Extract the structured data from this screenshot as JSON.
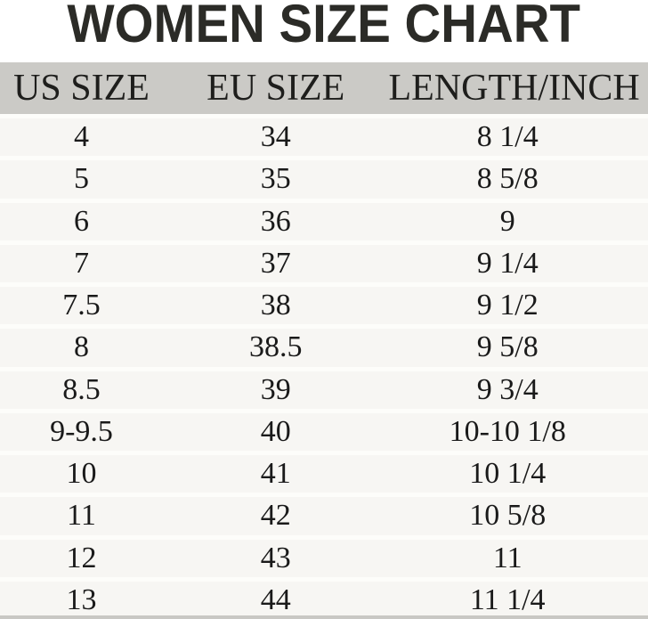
{
  "title": "WOMEN SIZE CHART",
  "chart_data": {
    "type": "table",
    "title": "WOMEN SIZE CHART",
    "columns": [
      "US SIZE",
      "EU SIZE",
      "LENGTH/INCH"
    ],
    "rows": [
      [
        "4",
        "34",
        "8 1/4"
      ],
      [
        "5",
        "35",
        "8 5/8"
      ],
      [
        "6",
        "36",
        "9"
      ],
      [
        "7",
        "37",
        "9 1/4"
      ],
      [
        "7.5",
        "38",
        "9 1/2"
      ],
      [
        "8",
        "38.5",
        "9 5/8"
      ],
      [
        "8.5",
        "39",
        "9 3/4"
      ],
      [
        "9-9.5",
        "40",
        "10-10 1/8"
      ],
      [
        "10",
        "41",
        "10 1/4"
      ],
      [
        "11",
        "42",
        "10 5/8"
      ],
      [
        "12",
        "43",
        "11"
      ],
      [
        "13",
        "44",
        "11 1/4"
      ]
    ]
  },
  "colors": {
    "page_bg": "#ffffff",
    "header_bg": "#cbcac6",
    "row_bg": "#f7f6f3",
    "row_separator": "#fdfdfa",
    "bottom_line": "#c9c8c4",
    "title_text": "#2b2b27",
    "table_text": "#1a1a1a"
  }
}
